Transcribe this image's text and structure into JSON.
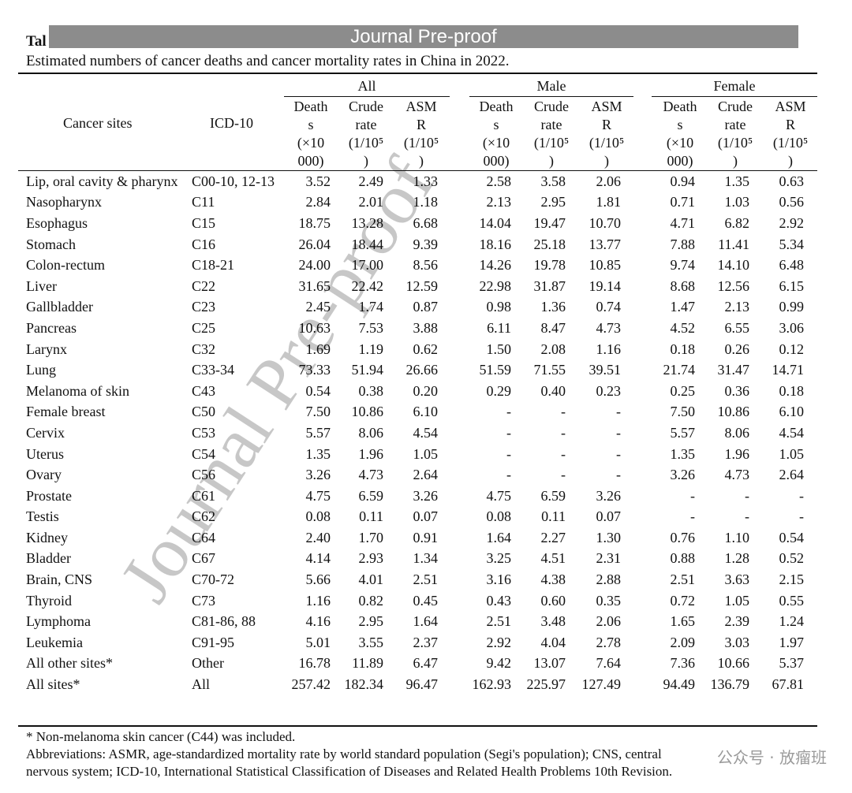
{
  "banner": "Journal Pre-proof",
  "table_label": "Tal",
  "caption": "Estimated numbers of cancer deaths and cancer mortality rates in China in 2022.",
  "groups": [
    "All",
    "Male",
    "Female"
  ],
  "columns": {
    "site": "Cancer sites",
    "icd": "ICD-10",
    "deaths": [
      "Death",
      "s",
      "(×10",
      "000)"
    ],
    "crude": [
      "Crude",
      "rate",
      "(1/10⁵",
      ")"
    ],
    "asmr": [
      "ASM",
      "R",
      "(1/10⁵",
      ")"
    ]
  },
  "rows": [
    {
      "site": "Lip, oral cavity & pharynx",
      "icd": "C00-10, 12-13",
      "v": [
        "3.52",
        "2.49",
        "1.33",
        "2.58",
        "3.58",
        "2.06",
        "0.94",
        "1.35",
        "0.63"
      ]
    },
    {
      "site": "Nasopharynx",
      "icd": "C11",
      "v": [
        "2.84",
        "2.01",
        "1.18",
        "2.13",
        "2.95",
        "1.81",
        "0.71",
        "1.03",
        "0.56"
      ]
    },
    {
      "site": "Esophagus",
      "icd": "C15",
      "v": [
        "18.75",
        "13.28",
        "6.68",
        "14.04",
        "19.47",
        "10.70",
        "4.71",
        "6.82",
        "2.92"
      ]
    },
    {
      "site": "Stomach",
      "icd": "C16",
      "v": [
        "26.04",
        "18.44",
        "9.39",
        "18.16",
        "25.18",
        "13.77",
        "7.88",
        "11.41",
        "5.34"
      ]
    },
    {
      "site": "Colon-rectum",
      "icd": "C18-21",
      "v": [
        "24.00",
        "17.00",
        "8.56",
        "14.26",
        "19.78",
        "10.85",
        "9.74",
        "14.10",
        "6.48"
      ]
    },
    {
      "site": "Liver",
      "icd": "C22",
      "v": [
        "31.65",
        "22.42",
        "12.59",
        "22.98",
        "31.87",
        "19.14",
        "8.68",
        "12.56",
        "6.15"
      ]
    },
    {
      "site": "Gallbladder",
      "icd": "C23",
      "v": [
        "2.45",
        "1.74",
        "0.87",
        "0.98",
        "1.36",
        "0.74",
        "1.47",
        "2.13",
        "0.99"
      ]
    },
    {
      "site": "Pancreas",
      "icd": "C25",
      "v": [
        "10.63",
        "7.53",
        "3.88",
        "6.11",
        "8.47",
        "4.73",
        "4.52",
        "6.55",
        "3.06"
      ]
    },
    {
      "site": "Larynx",
      "icd": "C32",
      "v": [
        "1.69",
        "1.19",
        "0.62",
        "1.50",
        "2.08",
        "1.16",
        "0.18",
        "0.26",
        "0.12"
      ]
    },
    {
      "site": "Lung",
      "icd": "C33-34",
      "v": [
        "73.33",
        "51.94",
        "26.66",
        "51.59",
        "71.55",
        "39.51",
        "21.74",
        "31.47",
        "14.71"
      ]
    },
    {
      "site": "Melanoma of skin",
      "icd": "C43",
      "v": [
        "0.54",
        "0.38",
        "0.20",
        "0.29",
        "0.40",
        "0.23",
        "0.25",
        "0.36",
        "0.18"
      ]
    },
    {
      "site": "Female breast",
      "icd": "C50",
      "v": [
        "7.50",
        "10.86",
        "6.10",
        "-",
        "-",
        "-",
        "7.50",
        "10.86",
        "6.10"
      ]
    },
    {
      "site": "Cervix",
      "icd": "C53",
      "v": [
        "5.57",
        "8.06",
        "4.54",
        "-",
        "-",
        "-",
        "5.57",
        "8.06",
        "4.54"
      ]
    },
    {
      "site": "Uterus",
      "icd": "C54",
      "v": [
        "1.35",
        "1.96",
        "1.05",
        "-",
        "-",
        "-",
        "1.35",
        "1.96",
        "1.05"
      ]
    },
    {
      "site": "Ovary",
      "icd": "C56",
      "v": [
        "3.26",
        "4.73",
        "2.64",
        "-",
        "-",
        "-",
        "3.26",
        "4.73",
        "2.64"
      ]
    },
    {
      "site": "Prostate",
      "icd": "C61",
      "v": [
        "4.75",
        "6.59",
        "3.26",
        "4.75",
        "6.59",
        "3.26",
        "-",
        "-",
        "-"
      ]
    },
    {
      "site": "Testis",
      "icd": "C62",
      "v": [
        "0.08",
        "0.11",
        "0.07",
        "0.08",
        "0.11",
        "0.07",
        "-",
        "-",
        "-"
      ]
    },
    {
      "site": "Kidney",
      "icd": "C64",
      "v": [
        "2.40",
        "1.70",
        "0.91",
        "1.64",
        "2.27",
        "1.30",
        "0.76",
        "1.10",
        "0.54"
      ]
    },
    {
      "site": "Bladder",
      "icd": "C67",
      "v": [
        "4.14",
        "2.93",
        "1.34",
        "3.25",
        "4.51",
        "2.31",
        "0.88",
        "1.28",
        "0.52"
      ]
    },
    {
      "site": "Brain, CNS",
      "icd": "C70-72",
      "v": [
        "5.66",
        "4.01",
        "2.51",
        "3.16",
        "4.38",
        "2.88",
        "2.51",
        "3.63",
        "2.15"
      ]
    },
    {
      "site": "Thyroid",
      "icd": "C73",
      "v": [
        "1.16",
        "0.82",
        "0.45",
        "0.43",
        "0.60",
        "0.35",
        "0.72",
        "1.05",
        "0.55"
      ]
    },
    {
      "site": "Lymphoma",
      "icd": "C81-86, 88",
      "v": [
        "4.16",
        "2.95",
        "1.64",
        "2.51",
        "3.48",
        "2.06",
        "1.65",
        "2.39",
        "1.24"
      ]
    },
    {
      "site": "Leukemia",
      "icd": "C91-95",
      "v": [
        "5.01",
        "3.55",
        "2.37",
        "2.92",
        "4.04",
        "2.78",
        "2.09",
        "3.03",
        "1.97"
      ]
    },
    {
      "site": "All other sites*",
      "icd": "Other",
      "v": [
        "16.78",
        "11.89",
        "6.47",
        "9.42",
        "13.07",
        "7.64",
        "7.36",
        "10.66",
        "5.37"
      ]
    },
    {
      "site": "All sites*",
      "icd": "All",
      "v": [
        "257.42",
        "182.34",
        "96.47",
        "162.93",
        "225.97",
        "127.49",
        "94.49",
        "136.79",
        "67.81"
      ]
    }
  ],
  "footnote": "* Non-melanoma skin cancer (C44) was included.",
  "abbreviations_1": "Abbreviations: ASMR, age-standardized mortality rate by world standard population (Segi's population); CNS, central",
  "abbreviations_2": "nervous system; ICD-10, International Statistical Classification of Diseases and Related Health Problems 10th Revision.",
  "watermark": "Journal Pre-proof",
  "logo_text": "公众号 · 放瘤班"
}
